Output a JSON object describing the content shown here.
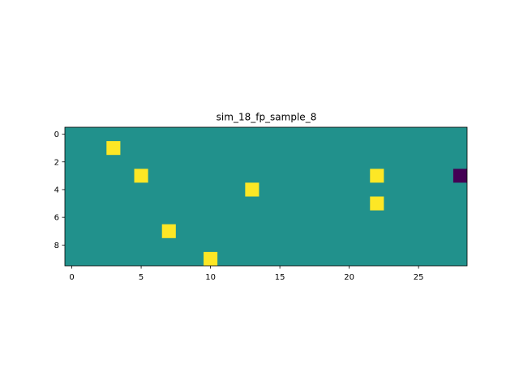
{
  "chart_data": {
    "type": "heatmap",
    "title": "sim_18_fp_sample_8",
    "xlabel": "",
    "ylabel": "",
    "rows": 10,
    "cols": 29,
    "xlim": [
      -0.5,
      28.5
    ],
    "ylim": [
      9.5,
      -0.5
    ],
    "y_inverted": true,
    "grid": false,
    "legend": "none",
    "x_ticks": [
      0,
      5,
      10,
      15,
      20,
      25
    ],
    "x_tick_labels": [
      "0",
      "5",
      "10",
      "15",
      "20",
      "25"
    ],
    "y_ticks": [
      0,
      2,
      4,
      6,
      8
    ],
    "y_tick_labels": [
      "0",
      "2",
      "4",
      "6",
      "8"
    ],
    "background_value": 0,
    "cells": [
      {
        "x": 3,
        "y": 1,
        "value": 1
      },
      {
        "x": 5,
        "y": 3,
        "value": 1
      },
      {
        "x": 22,
        "y": 3,
        "value": 1
      },
      {
        "x": 28,
        "y": 3,
        "value": -1
      },
      {
        "x": 13,
        "y": 4,
        "value": 1
      },
      {
        "x": 22,
        "y": 5,
        "value": 1
      },
      {
        "x": 7,
        "y": 7,
        "value": 1
      },
      {
        "x": 10,
        "y": 9,
        "value": 1
      }
    ],
    "colormap": {
      "name": "viridis",
      "low_value": -1,
      "mid_value": 0,
      "high_value": 1,
      "low_color": "#440154",
      "mid_color": "#21918c",
      "high_color": "#fde725"
    }
  }
}
